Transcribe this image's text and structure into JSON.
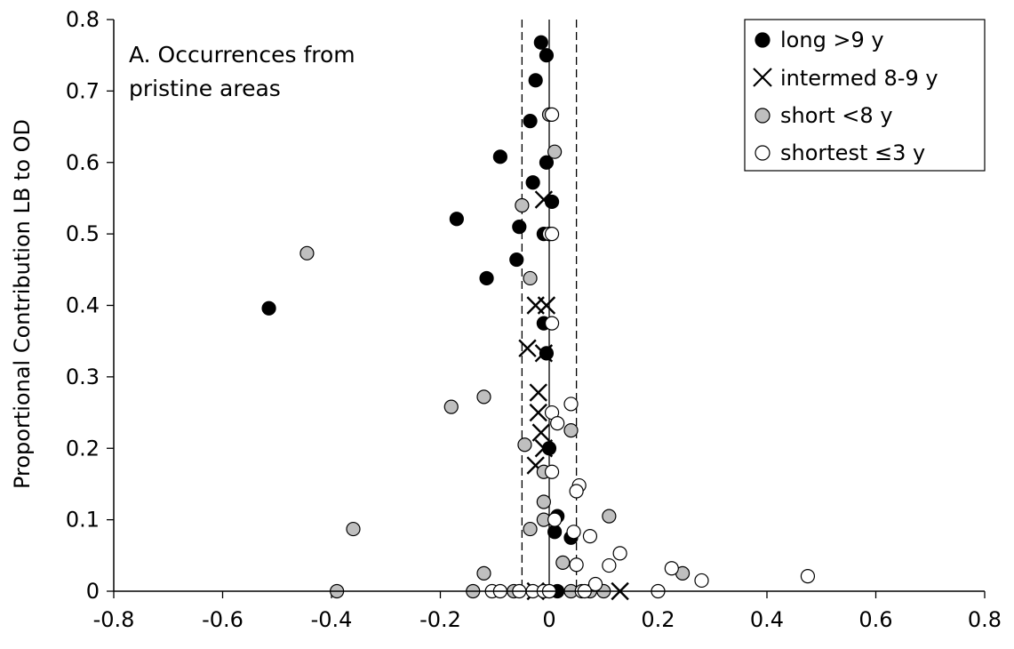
{
  "chart_data": {
    "type": "scatter",
    "title": "",
    "annotation": [
      "A. Occurrences from",
      "pristine areas"
    ],
    "xlabel": "",
    "ylabel": "Proportional Contribution LB to OD",
    "xlim": [
      -0.8,
      0.8
    ],
    "ylim": [
      0,
      0.8
    ],
    "x_ticks": [
      "-0.8",
      "-0.6",
      "-0.4",
      "-0.2",
      "0",
      "0.2",
      "0.4",
      "0.6",
      "0.8"
    ],
    "y_ticks": [
      "0",
      "0.1",
      "0.2",
      "0.3",
      "0.4",
      "0.5",
      "0.6",
      "0.7",
      "0.8"
    ],
    "reference_lines": {
      "solid_x": [
        0
      ],
      "dashed_x": [
        -0.05,
        0.05
      ]
    },
    "legend_position": "top-right",
    "grid": false,
    "series": [
      {
        "name": "long >9 y",
        "marker": "filled-circle",
        "color": "#000000",
        "points": [
          [
            -0.015,
            0.768
          ],
          [
            -0.005,
            0.75
          ],
          [
            -0.025,
            0.715
          ],
          [
            -0.035,
            0.658
          ],
          [
            -0.005,
            0.6
          ],
          [
            -0.09,
            0.608
          ],
          [
            -0.03,
            0.572
          ],
          [
            0.005,
            0.545
          ],
          [
            -0.17,
            0.521
          ],
          [
            -0.055,
            0.51
          ],
          [
            -0.01,
            0.5
          ],
          [
            0.0,
            0.5
          ],
          [
            -0.06,
            0.464
          ],
          [
            -0.115,
            0.438
          ],
          [
            -0.515,
            0.396
          ],
          [
            -0.01,
            0.375
          ],
          [
            -0.005,
            0.333
          ],
          [
            0.0,
            0.2
          ],
          [
            0.015,
            0.105
          ],
          [
            0.01,
            0.083
          ],
          [
            0.04,
            0.075
          ],
          [
            0.0,
            0.0
          ],
          [
            0.015,
            0.0
          ]
        ]
      },
      {
        "name": "intermed 8-9 y",
        "marker": "x",
        "color": "#000000",
        "points": [
          [
            -0.01,
            0.548
          ],
          [
            -0.025,
            0.4
          ],
          [
            -0.005,
            0.4
          ],
          [
            -0.04,
            0.34
          ],
          [
            -0.01,
            0.333
          ],
          [
            -0.02,
            0.278
          ],
          [
            -0.02,
            0.25
          ],
          [
            -0.015,
            0.222
          ],
          [
            -0.01,
            0.2
          ],
          [
            -0.025,
            0.176
          ],
          [
            -0.025,
            0.0
          ],
          [
            0.13,
            0.0
          ]
        ]
      },
      {
        "name": "short <8 y",
        "marker": "gray-circle",
        "color": "#bfbfbf",
        "points": [
          [
            0.0,
            0.667
          ],
          [
            0.01,
            0.615
          ],
          [
            -0.05,
            0.54
          ],
          [
            -0.035,
            0.438
          ],
          [
            -0.445,
            0.473
          ],
          [
            -0.12,
            0.272
          ],
          [
            -0.18,
            0.258
          ],
          [
            0.04,
            0.225
          ],
          [
            -0.045,
            0.205
          ],
          [
            -0.01,
            0.167
          ],
          [
            -0.01,
            0.125
          ],
          [
            -0.01,
            0.1
          ],
          [
            -0.035,
            0.087
          ],
          [
            -0.36,
            0.087
          ],
          [
            0.11,
            0.105
          ],
          [
            0.025,
            0.04
          ],
          [
            -0.12,
            0.025
          ],
          [
            -0.39,
            0.0
          ],
          [
            -0.14,
            0.0
          ],
          [
            -0.065,
            0.0
          ],
          [
            -0.01,
            0.0
          ],
          [
            0.04,
            0.0
          ],
          [
            0.075,
            0.0
          ],
          [
            0.1,
            0.0
          ],
          [
            0.245,
            0.025
          ]
        ]
      },
      {
        "name": "shortest ≤3 y",
        "marker": "open-circle",
        "color": "#ffffff",
        "points": [
          [
            0.005,
            0.667
          ],
          [
            0.0,
            0.5
          ],
          [
            0.005,
            0.5
          ],
          [
            0.005,
            0.375
          ],
          [
            0.04,
            0.262
          ],
          [
            0.005,
            0.25
          ],
          [
            0.015,
            0.235
          ],
          [
            0.005,
            0.167
          ],
          [
            0.055,
            0.148
          ],
          [
            0.05,
            0.14
          ],
          [
            0.01,
            0.1
          ],
          [
            0.045,
            0.083
          ],
          [
            0.075,
            0.077
          ],
          [
            0.13,
            0.053
          ],
          [
            0.05,
            0.037
          ],
          [
            0.11,
            0.036
          ],
          [
            0.225,
            0.032
          ],
          [
            0.28,
            0.015
          ],
          [
            0.475,
            0.021
          ],
          [
            0.085,
            0.01
          ],
          [
            -0.105,
            0.0
          ],
          [
            -0.09,
            0.0
          ],
          [
            -0.055,
            0.0
          ],
          [
            -0.03,
            0.0
          ],
          [
            -0.01,
            0.0
          ],
          [
            0.0,
            0.0
          ],
          [
            0.06,
            0.0
          ],
          [
            0.065,
            0.0
          ],
          [
            0.2,
            0.0
          ]
        ]
      }
    ]
  }
}
